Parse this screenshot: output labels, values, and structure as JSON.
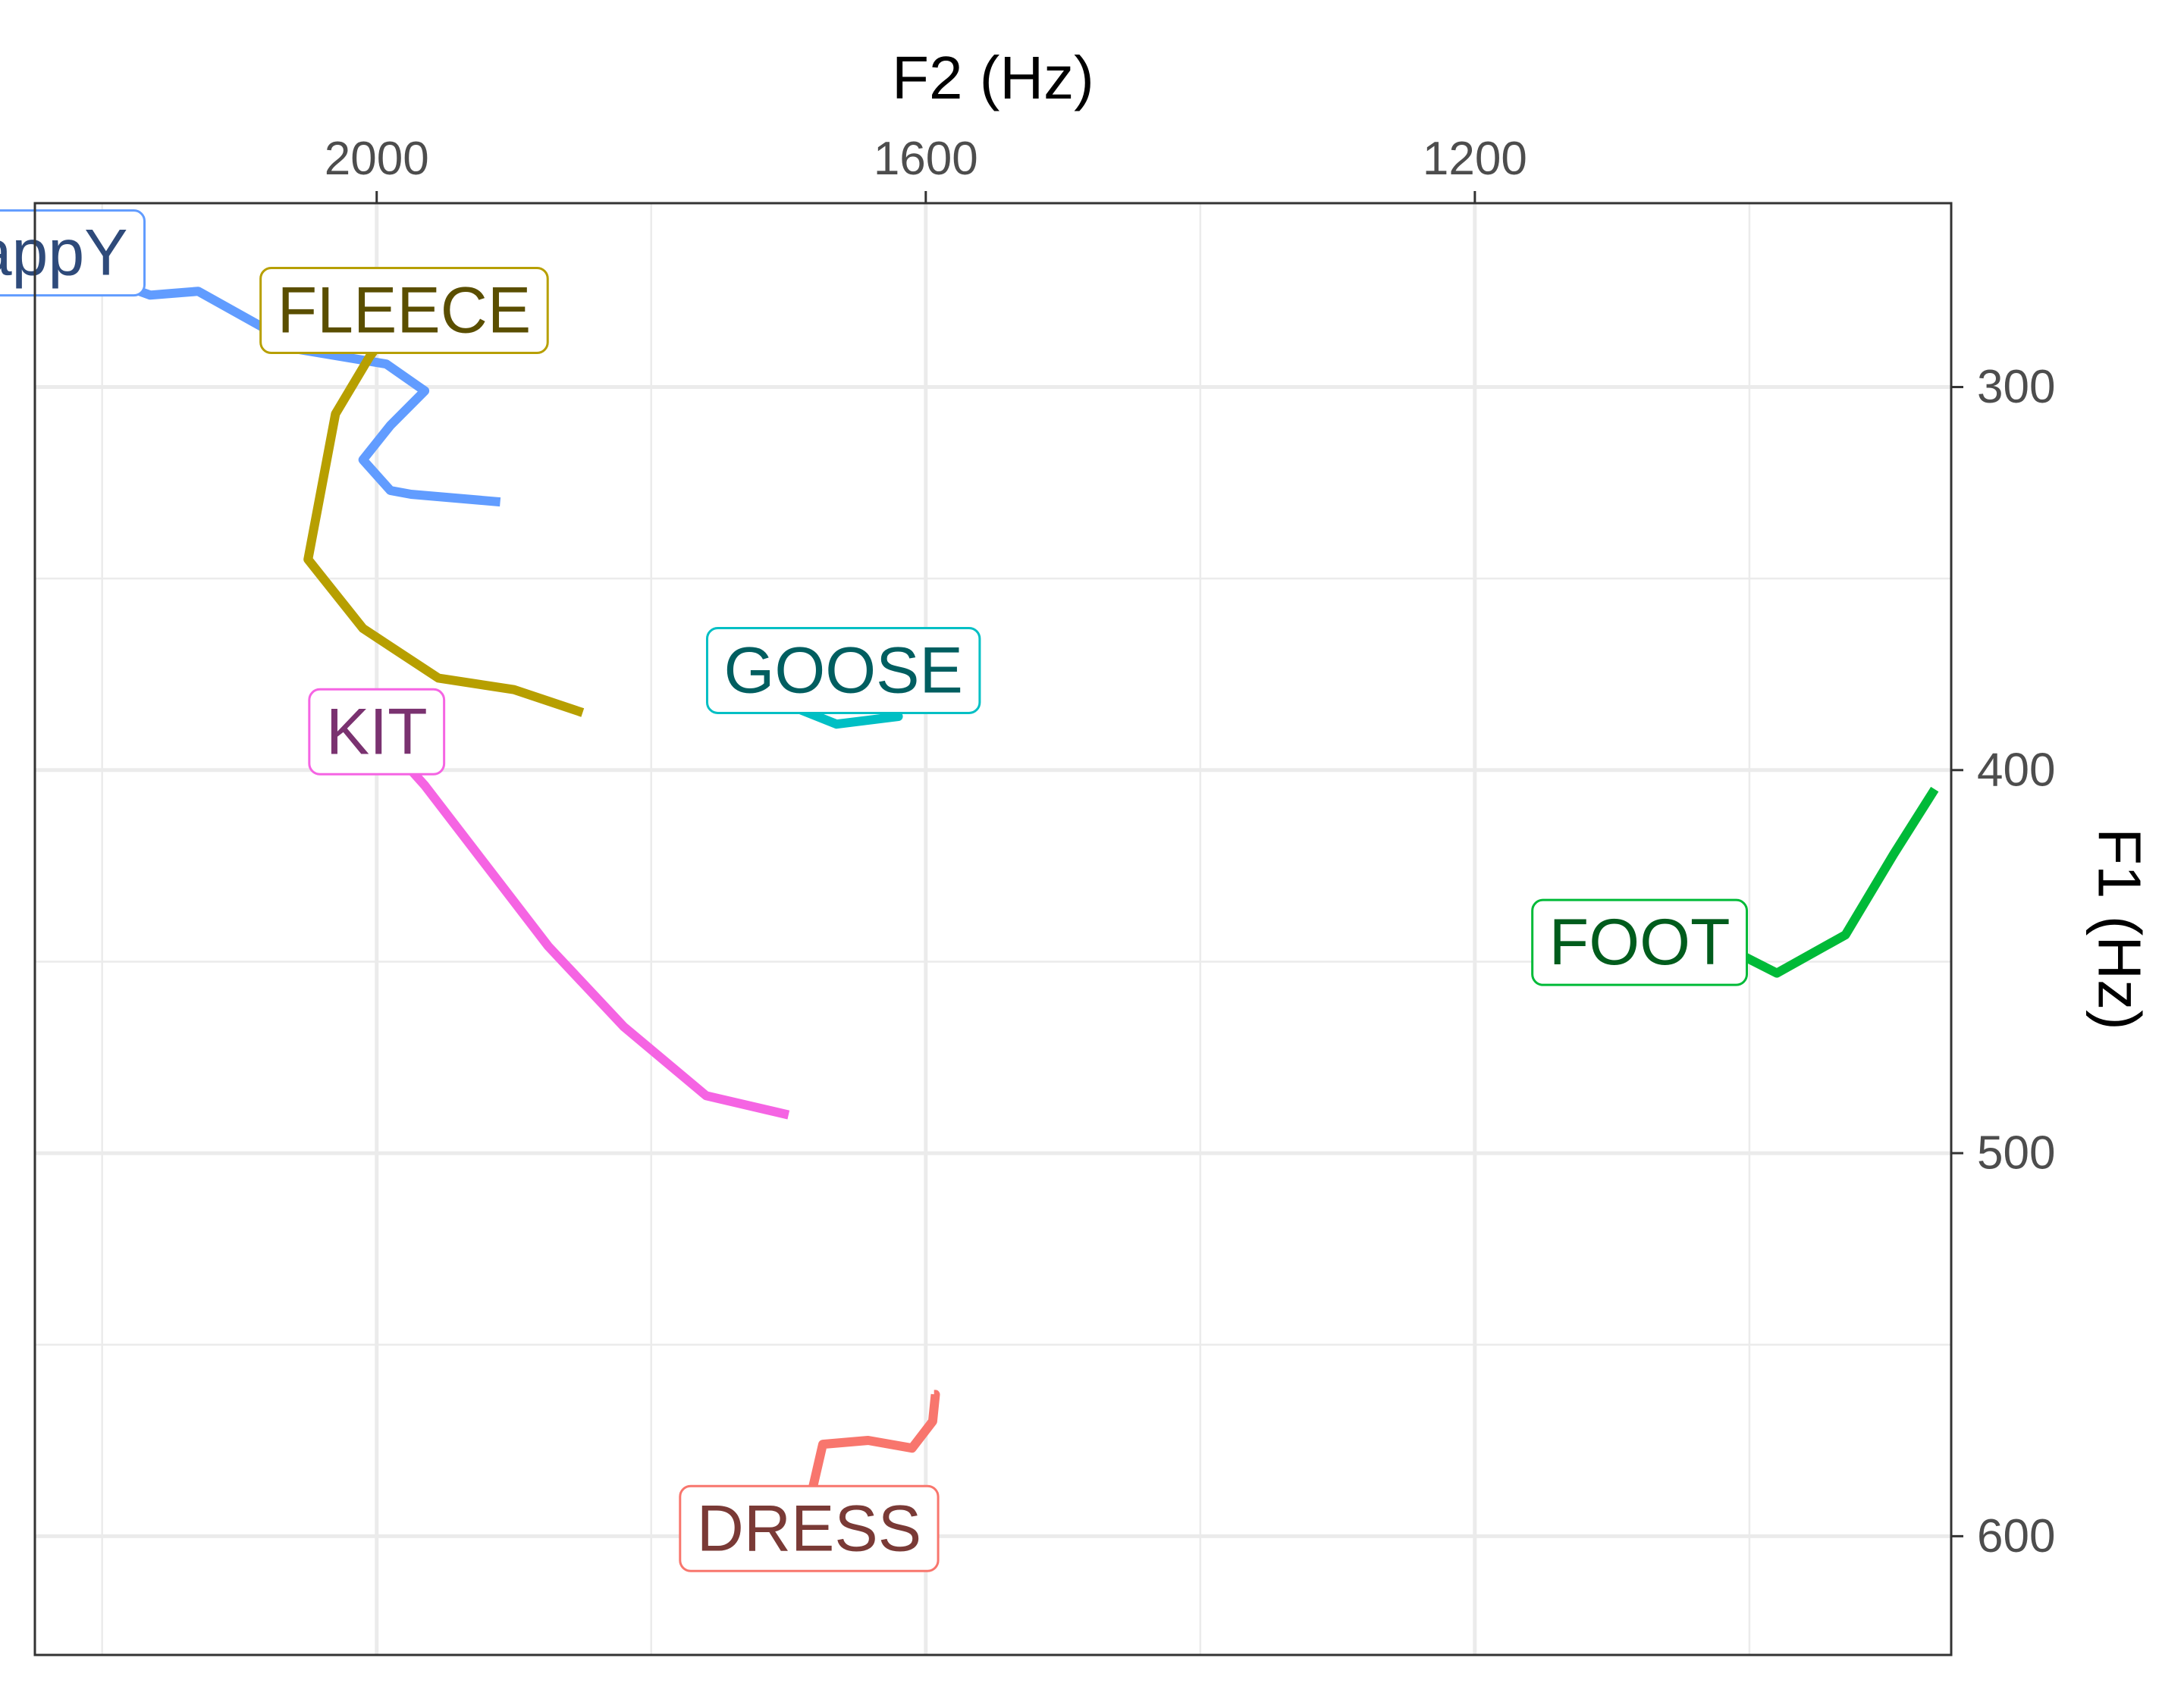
{
  "chart_data": {
    "type": "line",
    "title": "",
    "xlabel": "F2 (Hz)",
    "ylabel": "F1 (Hz)",
    "x_axis": {
      "position": "top",
      "reversed": true,
      "range": [
        2249,
        853
      ],
      "ticks": [
        2000,
        1600,
        1200
      ],
      "tick_labels": [
        "2000",
        "1600",
        "1200"
      ],
      "minor_gridlines": [
        2200,
        1800,
        1400,
        1000
      ]
    },
    "y_axis": {
      "position": "right",
      "reversed": true,
      "range": [
        252,
        631
      ],
      "ticks": [
        300,
        400,
        500,
        600
      ],
      "tick_labels": [
        "300",
        "400",
        "500",
        "600"
      ],
      "minor_gridlines": [
        350,
        450,
        550
      ]
    },
    "grid": true,
    "legend": "none",
    "series": [
      {
        "name": "happY",
        "color": "#619CFF",
        "label_color": "#2E4A7A",
        "points": [
          [
            2250,
            265
          ],
          [
            2165,
            276
          ],
          [
            2130,
            275
          ],
          [
            2080,
            285
          ],
          [
            2060,
            290
          ],
          [
            1993,
            294
          ],
          [
            1965,
            301
          ],
          [
            1990,
            310
          ],
          [
            2010,
            319
          ],
          [
            1990,
            327
          ],
          [
            1975,
            328
          ],
          [
            1910,
            330
          ]
        ]
      },
      {
        "name": "FLEECE",
        "color": "#B79F00",
        "label_color": "#5A4E00",
        "points": [
          [
            1980,
            280
          ],
          [
            2005,
            292
          ],
          [
            2030,
            307
          ],
          [
            2040,
            326
          ],
          [
            2050,
            345
          ],
          [
            2010,
            363
          ],
          [
            1955,
            376
          ],
          [
            1900,
            379
          ],
          [
            1850,
            385
          ]
        ]
      },
      {
        "name": "GOOSE",
        "color": "#00BFC4",
        "label_color": "#005E60",
        "points": [
          [
            1660,
            374
          ],
          [
            1725,
            370
          ],
          [
            1700,
            383
          ],
          [
            1665,
            388
          ],
          [
            1620,
            386
          ],
          [
            1630,
            383
          ],
          [
            1645,
            376
          ]
        ]
      },
      {
        "name": "KIT",
        "color": "#F564E3",
        "label_color": "#7A3270",
        "points": [
          [
            2000,
            390
          ],
          [
            1965,
            404
          ],
          [
            1875,
            446
          ],
          [
            1820,
            467
          ],
          [
            1760,
            485
          ],
          [
            1700,
            490
          ]
        ]
      },
      {
        "name": "FOOT",
        "color": "#00BA38",
        "label_color": "#005C1C",
        "points": [
          [
            1080,
            445
          ],
          [
            1035,
            443
          ],
          [
            980,
            453
          ],
          [
            930,
            443
          ],
          [
            895,
            422
          ],
          [
            865,
            405
          ]
        ]
      },
      {
        "name": "DRESS",
        "color": "#F8766D",
        "label_color": "#7A3A36",
        "points": [
          [
            1685,
            598
          ],
          [
            1688,
            593
          ],
          [
            1684,
            590
          ],
          [
            1675,
            576
          ],
          [
            1642,
            575
          ],
          [
            1610,
            577
          ],
          [
            1595,
            570
          ],
          [
            1593,
            563
          ],
          [
            1594,
            563
          ]
        ]
      }
    ]
  }
}
